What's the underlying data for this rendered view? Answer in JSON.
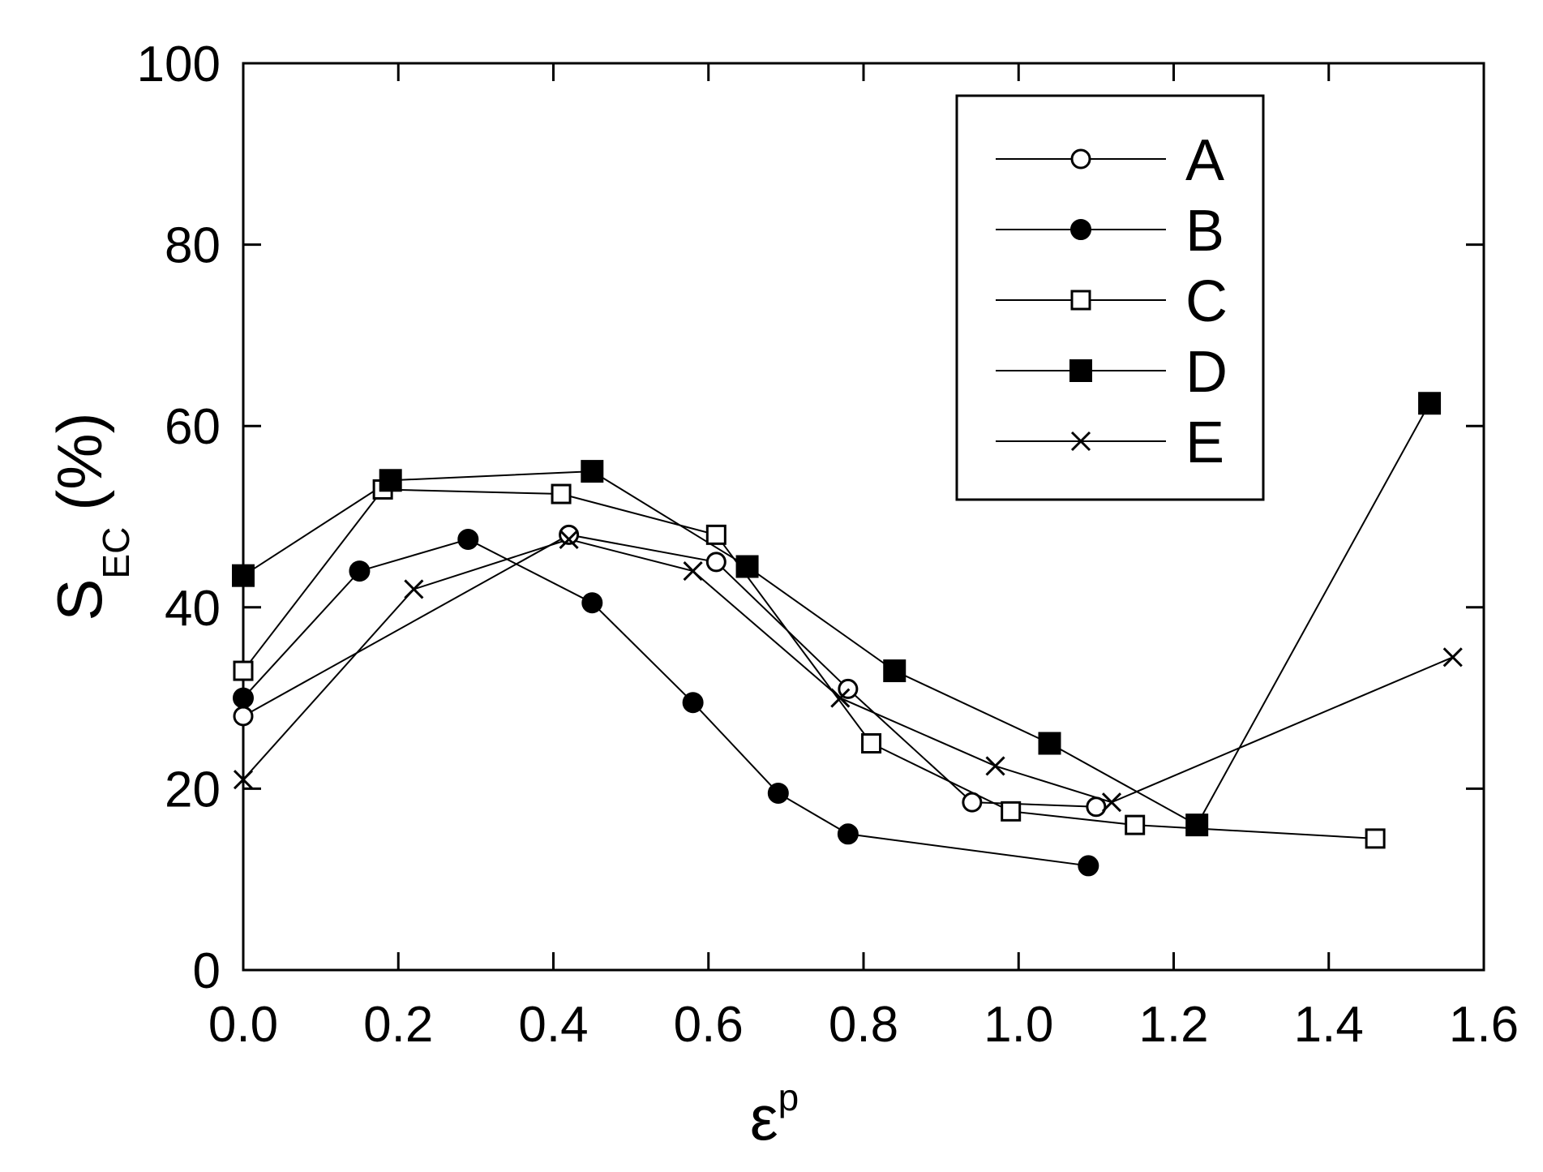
{
  "chart_data": {
    "type": "line",
    "xlabel": "ε",
    "xlabel_sup": "p",
    "ylabel": "S",
    "ylabel_sub": "EC",
    "ylabel_unit": "(%)",
    "xlim": [
      0.0,
      1.6
    ],
    "ylim": [
      0,
      100
    ],
    "x_ticks": [
      "0.0",
      "0.2",
      "0.4",
      "0.6",
      "0.8",
      "1.0",
      "1.2",
      "1.4",
      "1.6"
    ],
    "y_ticks": [
      "0",
      "20",
      "40",
      "60",
      "80",
      "100"
    ],
    "grid": false,
    "legend_position": "top-right",
    "series": [
      {
        "name": "A",
        "marker": "circle-open",
        "x": [
          0.0,
          0.42,
          0.61,
          0.78,
          0.94,
          1.1
        ],
        "y": [
          28,
          48,
          45,
          31,
          18.5,
          18
        ]
      },
      {
        "name": "B",
        "marker": "circle-filled",
        "x": [
          0.0,
          0.15,
          0.29,
          0.45,
          0.58,
          0.69,
          0.78,
          1.09
        ],
        "y": [
          30,
          44,
          47.5,
          40.5,
          29.5,
          19.5,
          15,
          11.5
        ]
      },
      {
        "name": "C",
        "marker": "square-open",
        "x": [
          0.0,
          0.18,
          0.41,
          0.61,
          0.81,
          0.99,
          1.15,
          1.46
        ],
        "y": [
          33,
          53,
          52.5,
          48,
          25,
          17.5,
          16,
          14.5
        ]
      },
      {
        "name": "D",
        "marker": "square-filled",
        "x": [
          0.0,
          0.19,
          0.45,
          0.65,
          0.84,
          1.04,
          1.23,
          1.53
        ],
        "y": [
          43.5,
          54,
          55,
          44.5,
          33,
          25,
          16,
          62.5
        ]
      },
      {
        "name": "E",
        "marker": "x",
        "x": [
          0.0,
          0.22,
          0.42,
          0.58,
          0.77,
          0.97,
          1.12,
          1.56
        ],
        "y": [
          21,
          42,
          47.5,
          44,
          30,
          22.5,
          18.5,
          34.5
        ]
      }
    ]
  }
}
